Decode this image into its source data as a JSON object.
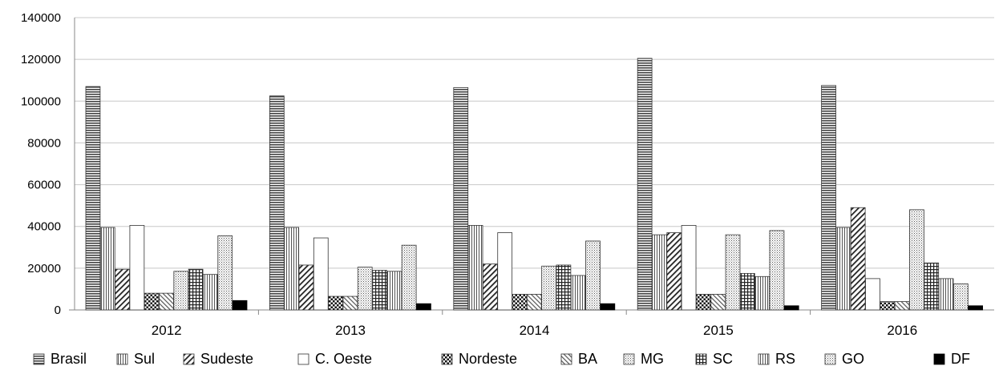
{
  "chart_data": {
    "type": "bar",
    "categories": [
      "2012",
      "2013",
      "2014",
      "2015",
      "2016"
    ],
    "ylim": [
      0,
      140000
    ],
    "yticks": [
      "0",
      "20000",
      "40000",
      "60000",
      "80000",
      "100000",
      "120000",
      "140000"
    ],
    "grid": true,
    "legend_position": "bottom",
    "series": [
      {
        "name": "Brasil",
        "pattern": "hlines",
        "values": [
          107000,
          102500,
          106500,
          120500,
          107500
        ]
      },
      {
        "name": "Sul",
        "pattern": "vlines",
        "values": [
          39500,
          39500,
          40500,
          36000,
          39500
        ]
      },
      {
        "name": "Sudeste",
        "pattern": "diag-down",
        "values": [
          19500,
          21500,
          22000,
          37000,
          49000
        ]
      },
      {
        "name": "C. Oeste",
        "pattern": "blank",
        "values": [
          40500,
          34500,
          37000,
          40500,
          15000
        ]
      },
      {
        "name": "Nordeste",
        "pattern": "checker",
        "values": [
          8000,
          6500,
          7500,
          7500,
          4000
        ]
      },
      {
        "name": "BA",
        "pattern": "diag-up",
        "values": [
          8000,
          6500,
          7500,
          7500,
          4000
        ]
      },
      {
        "name": "MG",
        "pattern": "dots",
        "values": [
          18500,
          20500,
          21000,
          36000,
          48000
        ]
      },
      {
        "name": "SC",
        "pattern": "grid",
        "values": [
          19500,
          19000,
          21500,
          17500,
          22500
        ]
      },
      {
        "name": "RS",
        "pattern": "vlines",
        "values": [
          17000,
          18500,
          16500,
          16000,
          15000
        ]
      },
      {
        "name": "GO",
        "pattern": "dots",
        "values": [
          35500,
          31000,
          33000,
          38000,
          12500
        ]
      },
      {
        "name": "DF",
        "pattern": "solid",
        "values": [
          4500,
          3000,
          3000,
          2000,
          2000
        ]
      }
    ]
  }
}
